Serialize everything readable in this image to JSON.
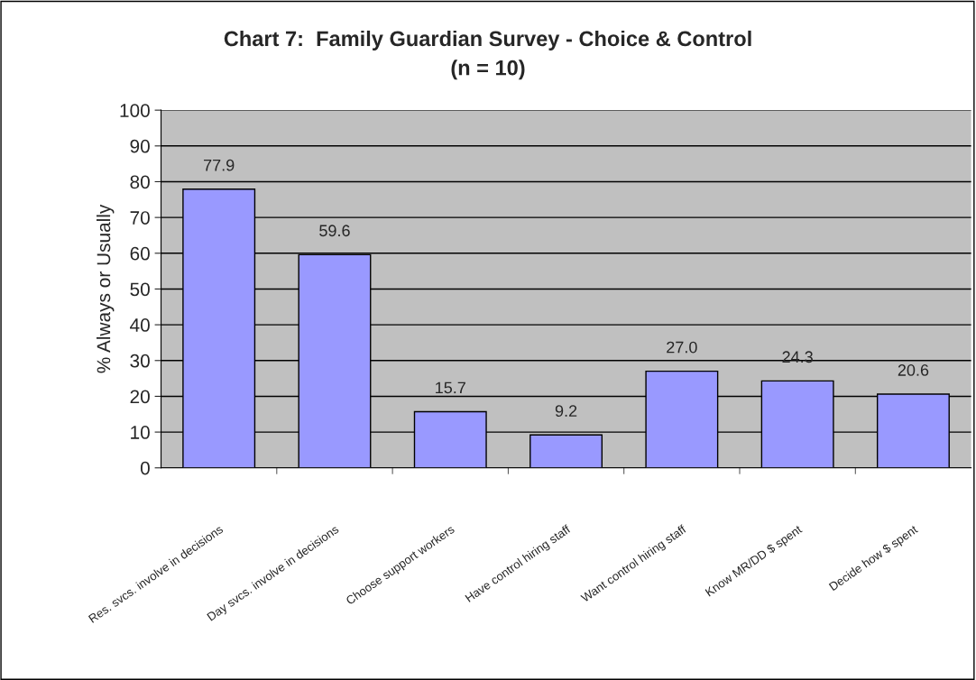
{
  "chart_data": {
    "type": "bar",
    "title": "Chart 7:  Family Guardian Survey - Choice & Control\n(n = 10)",
    "ylabel": "% Always or Usually",
    "categories": [
      "Res. svcs. involve in decisions",
      "Day svcs. involve in decisions",
      "Choose support workers",
      "Have control hiring staff",
      "Want control hiring staff",
      "Know MR/DD $ spent",
      "Decide how $ spent"
    ],
    "values": [
      77.9,
      59.6,
      15.7,
      9.2,
      27.0,
      24.3,
      20.6
    ],
    "value_labels": [
      "77.9",
      "59.6",
      "15.7",
      "9.2",
      "27.0",
      "24.3",
      "20.6"
    ],
    "color": "#9999ff",
    "ylim": [
      0,
      100
    ],
    "yticks": [
      0,
      10,
      20,
      30,
      40,
      50,
      60,
      70,
      80,
      90,
      100
    ],
    "grid": "y",
    "legend": false
  }
}
